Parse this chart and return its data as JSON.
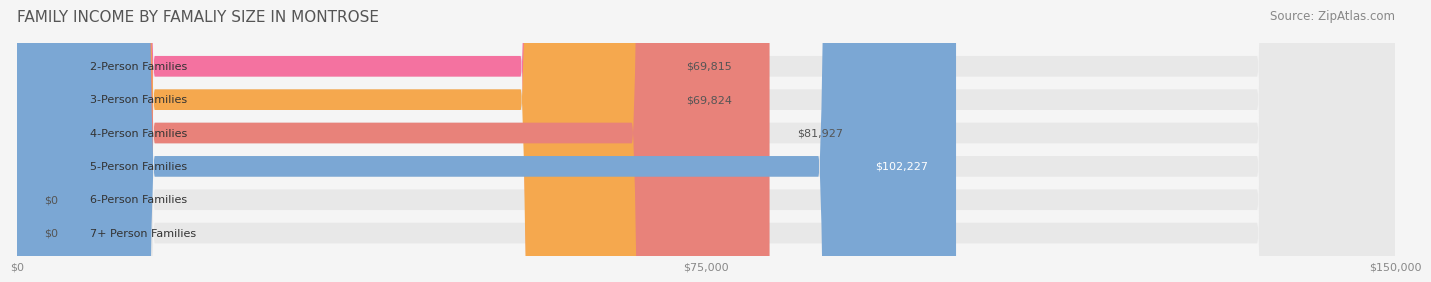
{
  "title": "FAMILY INCOME BY FAMALIY SIZE IN MONTROSE",
  "source": "Source: ZipAtlas.com",
  "categories": [
    "2-Person Families",
    "3-Person Families",
    "4-Person Families",
    "5-Person Families",
    "6-Person Families",
    "7+ Person Families"
  ],
  "values": [
    69815,
    69824,
    81927,
    102227,
    0,
    0
  ],
  "bar_colors": [
    "#f472a0",
    "#f5a84e",
    "#e8827a",
    "#7ba7d4",
    "#c4a8d4",
    "#7ecfcf"
  ],
  "label_colors": [
    "#333333",
    "#333333",
    "#333333",
    "#ffffff",
    "#333333",
    "#333333"
  ],
  "x_max": 150000,
  "x_ticks": [
    0,
    75000,
    150000
  ],
  "x_tick_labels": [
    "$0",
    "$75,000",
    "$150,000"
  ],
  "background_color": "#f5f5f5",
  "bar_bg_color": "#e8e8e8",
  "title_fontsize": 11,
  "source_fontsize": 8.5,
  "label_fontsize": 8,
  "value_fontsize": 8
}
